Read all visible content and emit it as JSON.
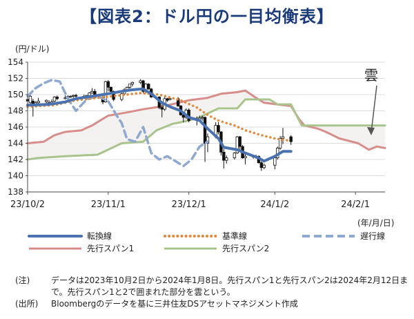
{
  "title": "【図表2：ドル円の一目均衡表】",
  "chart_data": {
    "type": "line",
    "ylabel": "(円/ドル)",
    "xlabel": "(年/月/日)",
    "ylim": [
      138,
      154
    ],
    "yticks": [
      138,
      140,
      142,
      144,
      146,
      148,
      150,
      152,
      154
    ],
    "xticks": [
      "23/10/2",
      "23/11/1",
      "23/12/1",
      "24/1/2",
      "24/2/1"
    ],
    "xdomain": [
      "2023-10-02",
      "2024-02-12"
    ],
    "annotation": "雲",
    "series": [
      {
        "name": "転換線",
        "style": "solid",
        "color": "#4a72b0",
        "points": [
          [
            "2023-10-02",
            148.7
          ],
          [
            "2023-10-10",
            148.8
          ],
          [
            "2023-10-16",
            149.1
          ],
          [
            "2023-10-20",
            149.5
          ],
          [
            "2023-10-26",
            149.8
          ],
          [
            "2023-11-01",
            150.1
          ],
          [
            "2023-11-06",
            150.4
          ],
          [
            "2023-11-10",
            150.6
          ],
          [
            "2023-11-14",
            150.7
          ],
          [
            "2023-11-17",
            150.1
          ],
          [
            "2023-11-21",
            149.0
          ],
          [
            "2023-11-24",
            148.5
          ],
          [
            "2023-11-28",
            148.0
          ],
          [
            "2023-12-01",
            147.2
          ],
          [
            "2023-12-05",
            146.8
          ],
          [
            "2023-12-08",
            145.8
          ],
          [
            "2023-12-12",
            144.6
          ],
          [
            "2023-12-14",
            143.5
          ],
          [
            "2023-12-19",
            143.2
          ],
          [
            "2023-12-22",
            142.8
          ],
          [
            "2023-12-27",
            142.2
          ],
          [
            "2023-12-29",
            141.8
          ],
          [
            "2024-01-02",
            142.4
          ],
          [
            "2024-01-05",
            143.0
          ],
          [
            "2024-01-08",
            143.0
          ]
        ]
      },
      {
        "name": "基準線",
        "style": "dotted",
        "color": "#e08a3c",
        "points": [
          [
            "2023-10-02",
            148.5
          ],
          [
            "2023-10-12",
            148.7
          ],
          [
            "2023-10-20",
            149.3
          ],
          [
            "2023-10-31",
            149.7
          ],
          [
            "2023-11-13",
            150.2
          ],
          [
            "2023-11-20",
            150.0
          ],
          [
            "2023-11-28",
            149.3
          ],
          [
            "2023-12-04",
            148.4
          ],
          [
            "2023-12-08",
            147.5
          ],
          [
            "2023-12-12",
            146.8
          ],
          [
            "2023-12-18",
            146.2
          ],
          [
            "2023-12-22",
            145.6
          ],
          [
            "2023-12-28",
            145.0
          ],
          [
            "2024-01-02",
            144.6
          ],
          [
            "2024-01-08",
            144.3
          ]
        ]
      },
      {
        "name": "遅行線",
        "style": "dashed",
        "color": "#8fa8cf",
        "points": [
          [
            "2023-10-02",
            149.8
          ],
          [
            "2023-10-05",
            150.8
          ],
          [
            "2023-10-08",
            151.4
          ],
          [
            "2023-10-11",
            151.8
          ],
          [
            "2023-10-14",
            151.6
          ],
          [
            "2023-10-17",
            149.5
          ],
          [
            "2023-10-20",
            148.0
          ],
          [
            "2023-10-24",
            149.4
          ],
          [
            "2023-10-28",
            149.8
          ],
          [
            "2023-11-01",
            149.2
          ],
          [
            "2023-11-04",
            147.5
          ],
          [
            "2023-11-06",
            146.5
          ],
          [
            "2023-11-08",
            144.5
          ],
          [
            "2023-11-11",
            144.2
          ],
          [
            "2023-11-14",
            146.0
          ],
          [
            "2023-11-17",
            142.8
          ],
          [
            "2023-11-20",
            142.0
          ],
          [
            "2023-11-23",
            142.4
          ],
          [
            "2023-11-26",
            141.8
          ],
          [
            "2023-11-29",
            141.2
          ],
          [
            "2023-12-02",
            142.0
          ],
          [
            "2023-12-05",
            143.6
          ],
          [
            "2023-12-08",
            144.2
          ]
        ]
      },
      {
        "name": "先行スパン1",
        "style": "solid",
        "color": "#d98d8b",
        "points": [
          [
            "2023-10-02",
            144.0
          ],
          [
            "2023-10-08",
            144.2
          ],
          [
            "2023-10-12",
            145.0
          ],
          [
            "2023-10-16",
            145.4
          ],
          [
            "2023-10-22",
            145.6
          ],
          [
            "2023-10-26",
            146.2
          ],
          [
            "2023-11-01",
            147.4
          ],
          [
            "2023-11-08",
            147.8
          ],
          [
            "2023-11-14",
            148.2
          ],
          [
            "2023-11-22",
            148.6
          ],
          [
            "2023-12-01",
            149.3
          ],
          [
            "2023-12-08",
            149.6
          ],
          [
            "2023-12-13",
            150.1
          ],
          [
            "2023-12-19",
            150.3
          ],
          [
            "2023-12-22",
            150.5
          ],
          [
            "2023-12-26",
            149.6
          ],
          [
            "2023-12-29",
            149.0
          ],
          [
            "2024-01-05",
            148.7
          ],
          [
            "2024-01-08",
            148.6
          ],
          [
            "2024-01-11",
            147.0
          ],
          [
            "2024-01-13",
            146.2
          ],
          [
            "2024-01-18",
            145.8
          ],
          [
            "2024-01-21",
            145.4
          ],
          [
            "2024-01-26",
            144.6
          ],
          [
            "2024-02-02",
            144.0
          ],
          [
            "2024-02-06",
            143.2
          ],
          [
            "2024-02-09",
            143.6
          ],
          [
            "2024-02-12",
            143.4
          ]
        ]
      },
      {
        "name": "先行スパン2",
        "style": "solid",
        "color": "#a8c48c",
        "points": [
          [
            "2023-10-02",
            142.0
          ],
          [
            "2023-10-06",
            142.2
          ],
          [
            "2023-10-16",
            142.4
          ],
          [
            "2023-10-28",
            142.6
          ],
          [
            "2023-11-06",
            144.0
          ],
          [
            "2023-11-14",
            144.2
          ],
          [
            "2023-11-19",
            145.6
          ],
          [
            "2023-11-25",
            146.4
          ],
          [
            "2023-12-01",
            146.8
          ],
          [
            "2023-12-05",
            147.2
          ],
          [
            "2023-12-12",
            148.3
          ],
          [
            "2023-12-19",
            148.3
          ],
          [
            "2023-12-22",
            149.4
          ],
          [
            "2023-12-31",
            149.4
          ],
          [
            "2024-01-03",
            148.8
          ],
          [
            "2024-01-08",
            148.8
          ],
          [
            "2024-01-12",
            146.2
          ],
          [
            "2024-02-12",
            146.2
          ]
        ]
      }
    ],
    "candles": [
      [
        "2023-10-02",
        149.4,
        149.8,
        149.0,
        149.2
      ],
      [
        "2023-10-03",
        149.0,
        150.2,
        148.9,
        149.8
      ],
      [
        "2023-10-04",
        149.2,
        149.5,
        147.3,
        148.6
      ],
      [
        "2023-10-05",
        148.6,
        149.2,
        148.5,
        149.0
      ],
      [
        "2023-10-06",
        149.0,
        149.6,
        148.8,
        149.2
      ],
      [
        "2023-10-09",
        149.1,
        149.4,
        148.9,
        149.3
      ],
      [
        "2023-10-10",
        149.0,
        149.3,
        148.7,
        148.9
      ],
      [
        "2023-10-11",
        148.9,
        149.4,
        148.8,
        149.1
      ],
      [
        "2023-10-12",
        149.2,
        149.8,
        149.1,
        149.7
      ],
      [
        "2023-10-13",
        149.7,
        149.9,
        149.3,
        149.5
      ],
      [
        "2023-10-16",
        149.5,
        149.9,
        149.4,
        149.6
      ],
      [
        "2023-10-17",
        149.6,
        149.9,
        149.5,
        149.8
      ],
      [
        "2023-10-18",
        149.8,
        149.9,
        149.6,
        149.8
      ],
      [
        "2023-10-19",
        149.8,
        150.0,
        149.6,
        149.9
      ],
      [
        "2023-10-20",
        149.9,
        150.1,
        149.6,
        149.8
      ],
      [
        "2023-10-23",
        149.8,
        150.0,
        149.5,
        149.7
      ],
      [
        "2023-10-24",
        149.7,
        149.9,
        149.5,
        149.9
      ],
      [
        "2023-10-25",
        149.9,
        150.3,
        149.8,
        150.2
      ],
      [
        "2023-10-26",
        150.2,
        150.8,
        150.1,
        150.4
      ],
      [
        "2023-10-27",
        150.4,
        150.7,
        149.6,
        149.6
      ],
      [
        "2023-10-30",
        149.6,
        149.9,
        148.8,
        149.1
      ],
      [
        "2023-10-31",
        149.1,
        151.7,
        149.0,
        151.6
      ],
      [
        "2023-11-01",
        151.6,
        151.8,
        150.4,
        150.9
      ],
      [
        "2023-11-02",
        150.9,
        151.0,
        150.1,
        150.4
      ],
      [
        "2023-11-03",
        150.4,
        150.5,
        149.2,
        149.4
      ],
      [
        "2023-11-06",
        149.4,
        150.2,
        149.2,
        150.1
      ],
      [
        "2023-11-07",
        150.1,
        150.8,
        149.9,
        150.6
      ],
      [
        "2023-11-08",
        150.6,
        151.0,
        150.4,
        150.9
      ],
      [
        "2023-11-09",
        150.9,
        151.2,
        150.7,
        151.3
      ],
      [
        "2023-11-10",
        151.3,
        151.6,
        151.0,
        151.5
      ],
      [
        "2023-11-13",
        151.5,
        151.9,
        151.3,
        151.7
      ],
      [
        "2023-11-14",
        151.7,
        151.8,
        150.2,
        150.4
      ],
      [
        "2023-11-15",
        150.4,
        151.4,
        150.2,
        151.3
      ],
      [
        "2023-11-16",
        151.3,
        151.4,
        150.6,
        150.7
      ],
      [
        "2023-11-17",
        150.7,
        150.8,
        149.6,
        149.7
      ],
      [
        "2023-11-20",
        149.7,
        149.8,
        148.2,
        148.4
      ],
      [
        "2023-11-21",
        148.4,
        148.8,
        147.2,
        148.2
      ],
      [
        "2023-11-22",
        148.2,
        149.7,
        148.0,
        149.5
      ],
      [
        "2023-11-23",
        149.5,
        149.6,
        149.1,
        149.3
      ],
      [
        "2023-11-24",
        149.4,
        149.6,
        149.3,
        149.5
      ],
      [
        "2023-11-27",
        149.5,
        149.7,
        148.5,
        148.6
      ],
      [
        "2023-11-28",
        148.6,
        148.7,
        147.4,
        147.5
      ],
      [
        "2023-11-29",
        147.5,
        147.7,
        146.6,
        147.2
      ],
      [
        "2023-11-30",
        147.2,
        148.3,
        147.0,
        148.1
      ],
      [
        "2023-12-01",
        148.1,
        148.3,
        146.6,
        146.8
      ],
      [
        "2023-12-04",
        146.8,
        147.3,
        146.2,
        146.9
      ],
      [
        "2023-12-05",
        146.9,
        147.4,
        146.6,
        147.1
      ],
      [
        "2023-12-06",
        147.1,
        147.4,
        146.8,
        147.2
      ],
      [
        "2023-12-07",
        147.2,
        147.3,
        141.7,
        144.0
      ],
      [
        "2023-12-08",
        144.0,
        145.2,
        142.9,
        144.8
      ],
      [
        "2023-12-11",
        144.8,
        146.6,
        144.6,
        146.2
      ],
      [
        "2023-12-12",
        146.2,
        146.6,
        145.1,
        145.4
      ],
      [
        "2023-12-13",
        145.4,
        145.5,
        142.5,
        142.9
      ],
      [
        "2023-12-14",
        142.9,
        143.3,
        140.9,
        141.9
      ],
      [
        "2023-12-15",
        141.9,
        142.5,
        141.5,
        142.2
      ],
      [
        "2023-12-18",
        142.2,
        142.9,
        142.0,
        142.8
      ],
      [
        "2023-12-19",
        142.8,
        144.9,
        142.7,
        144.8
      ],
      [
        "2023-12-20",
        144.8,
        144.9,
        143.2,
        143.6
      ],
      [
        "2023-12-21",
        143.6,
        143.8,
        142.1,
        142.2
      ],
      [
        "2023-12-22",
        142.2,
        142.8,
        141.4,
        142.4
      ],
      [
        "2023-12-25",
        142.4,
        142.6,
        142.1,
        142.3
      ],
      [
        "2023-12-26",
        142.3,
        142.6,
        142.1,
        142.4
      ],
      [
        "2023-12-27",
        142.4,
        142.5,
        141.5,
        141.6
      ],
      [
        "2023-12-28",
        141.6,
        141.8,
        140.6,
        141.0
      ],
      [
        "2023-12-29",
        141.0,
        141.5,
        140.8,
        141.3
      ],
      [
        "2024-01-02",
        141.3,
        142.4,
        140.8,
        142.2
      ],
      [
        "2024-01-03",
        142.2,
        143.6,
        142.0,
        143.4
      ],
      [
        "2024-01-04",
        143.4,
        144.9,
        143.2,
        144.6
      ],
      [
        "2024-01-05",
        144.6,
        145.9,
        143.9,
        144.8
      ],
      [
        "2024-01-08",
        144.8,
        145.0,
        143.8,
        144.2
      ]
    ]
  },
  "legend": {
    "items": [
      {
        "label": "転換線"
      },
      {
        "label": "基準線"
      },
      {
        "label": "遅行線"
      },
      {
        "label": "先行スパン1"
      },
      {
        "label": "先行スパン2"
      }
    ]
  },
  "notes": {
    "note1_tag": "(注)",
    "note1_text": "データは2023年10月2日から2024年1月8日。先行スパン1と先行スパン2は2024年2月12日まで。先行スパン1と2で囲まれた部分を雲という。",
    "note2_tag": "(出所)",
    "note2_text": "Bloombergのデータを基に三井住友DSアセットマネジメント作成"
  }
}
